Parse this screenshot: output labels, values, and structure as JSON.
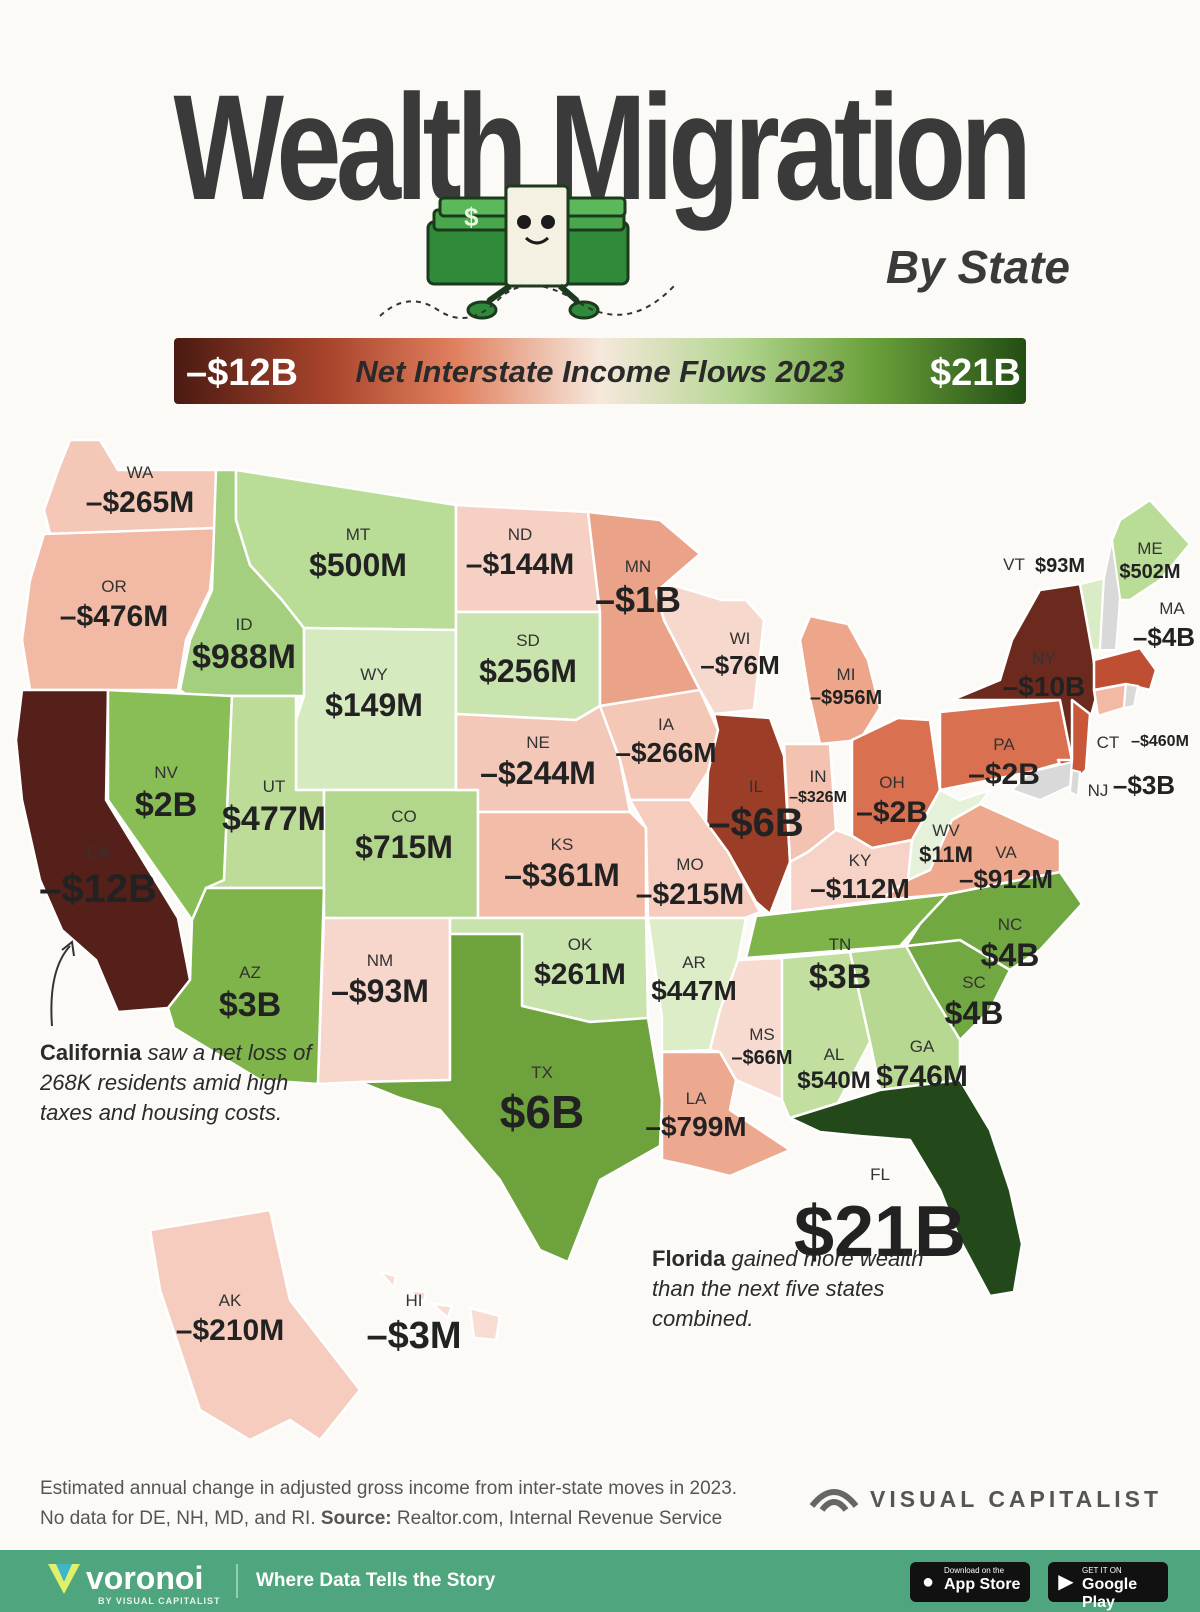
{
  "title": "Wealth Migration",
  "subtitle": "By State",
  "legend": {
    "min_label": "–$12B",
    "title": "Net Interstate Income Flows 2023",
    "max_label": "$21B"
  },
  "states": [
    {
      "abbr": "WA",
      "value": "–$265M",
      "color": "#f4c7b7"
    },
    {
      "abbr": "OR",
      "value": "–$476M",
      "color": "#f2b9a4"
    },
    {
      "abbr": "CA",
      "value": "–$12B",
      "color": "#55201a"
    },
    {
      "abbr": "ID",
      "value": "$988M",
      "color": "#a4cf7e"
    },
    {
      "abbr": "NV",
      "value": "$2B",
      "color": "#89bd55"
    },
    {
      "abbr": "MT",
      "value": "$500M",
      "color": "#b9dc96"
    },
    {
      "abbr": "WY",
      "value": "$149M",
      "color": "#d6eac0"
    },
    {
      "abbr": "UT",
      "value": "$477M",
      "color": "#bcdc98"
    },
    {
      "abbr": "CO",
      "value": "$715M",
      "color": "#b2d68c"
    },
    {
      "abbr": "AZ",
      "value": "$3B",
      "color": "#7eb449"
    },
    {
      "abbr": "NM",
      "value": "–$93M",
      "color": "#f7d6cb"
    },
    {
      "abbr": "ND",
      "value": "–$144M",
      "color": "#f6d0c3"
    },
    {
      "abbr": "SD",
      "value": "$256M",
      "color": "#c9e4ae"
    },
    {
      "abbr": "NE",
      "value": "–$244M",
      "color": "#f4c8b8"
    },
    {
      "abbr": "KS",
      "value": "–$361M",
      "color": "#f2bca8"
    },
    {
      "abbr": "OK",
      "value": "$261M",
      "color": "#c9e3ad"
    },
    {
      "abbr": "TX",
      "value": "$6B",
      "color": "#6ea23c"
    },
    {
      "abbr": "MN",
      "value": "–$1B",
      "color": "#eaa288"
    },
    {
      "abbr": "IA",
      "value": "–$266M",
      "color": "#f4c7b7"
    },
    {
      "abbr": "MO",
      "value": "–$215M",
      "color": "#f5ccbd"
    },
    {
      "abbr": "AR",
      "value": "$447M",
      "color": "#dcedc7"
    },
    {
      "abbr": "LA",
      "value": "–$799M",
      "color": "#eda98f"
    },
    {
      "abbr": "WI",
      "value": "–$76M",
      "color": "#f7d8cd"
    },
    {
      "abbr": "IL",
      "value": "–$6B",
      "color": "#9c3e27"
    },
    {
      "abbr": "MI",
      "value": "–$956M",
      "color": "#eea68b"
    },
    {
      "abbr": "IN",
      "value": "–$326M",
      "color": "#f3c2b0"
    },
    {
      "abbr": "OH",
      "value": "–$2B",
      "color": "#d9704f"
    },
    {
      "abbr": "KY",
      "value": "–$112M",
      "color": "#f6d3c6"
    },
    {
      "abbr": "TN",
      "value": "$3B",
      "color": "#7eb449"
    },
    {
      "abbr": "MS",
      "value": "–$66M",
      "color": "#f7dad0"
    },
    {
      "abbr": "AL",
      "value": "$540M",
      "color": "#c2df9f"
    },
    {
      "abbr": "GA",
      "value": "$746M",
      "color": "#b6d891"
    },
    {
      "abbr": "FL",
      "value": "$21B",
      "color": "#23491a"
    },
    {
      "abbr": "SC",
      "value": "$4B",
      "color": "#72a842"
    },
    {
      "abbr": "NC",
      "value": "$4B",
      "color": "#72a842"
    },
    {
      "abbr": "VA",
      "value": "–$912M",
      "color": "#eea88d"
    },
    {
      "abbr": "WV",
      "value": "$11M",
      "color": "#e6f1da"
    },
    {
      "abbr": "PA",
      "value": "–$2B",
      "color": "#d9704f"
    },
    {
      "abbr": "NY",
      "value": "–$10B",
      "color": "#6b2a1d"
    },
    {
      "abbr": "NJ",
      "value": "–$3B",
      "color": "#c9583b"
    },
    {
      "abbr": "CT",
      "value": "–$460M",
      "color": "#f2b9a4"
    },
    {
      "abbr": "MA",
      "value": "–$4B",
      "color": "#bf4f33"
    },
    {
      "abbr": "VT",
      "value": "$93M",
      "color": "#d9ecc6"
    },
    {
      "abbr": "ME",
      "value": "$502M",
      "color": "#b9dc96"
    },
    {
      "abbr": "AK",
      "value": "–$210M",
      "color": "#f5ccbd"
    },
    {
      "abbr": "HI",
      "value": "–$3M",
      "color": "#f8ddd3"
    }
  ],
  "no_data_color": "#d9d9d9",
  "notes": {
    "california_bold": "California",
    "california_rest": " saw a net loss of 268K residents amid high taxes and housing costs.",
    "florida_bold": "Florida",
    "florida_rest": " gained more wealth than the next five states combined."
  },
  "footnote": {
    "line1": "Estimated annual change in adjusted gross income from inter-state moves in 2023.",
    "line2_pre": "No data for DE, NH, MD, and RI. ",
    "source_label": "Source:",
    "source_text": " Realtor.com, Internal Revenue Service"
  },
  "brand": "VISUAL CAPITALIST",
  "footer": {
    "logo": "voronoi",
    "logo_sub": "BY VISUAL CAPITALIST",
    "tagline": "Where Data Tells the Story",
    "app_store_small": "Download on the",
    "app_store": "App Store",
    "google_play_small": "GET IT ON",
    "google_play": "Google Play"
  }
}
